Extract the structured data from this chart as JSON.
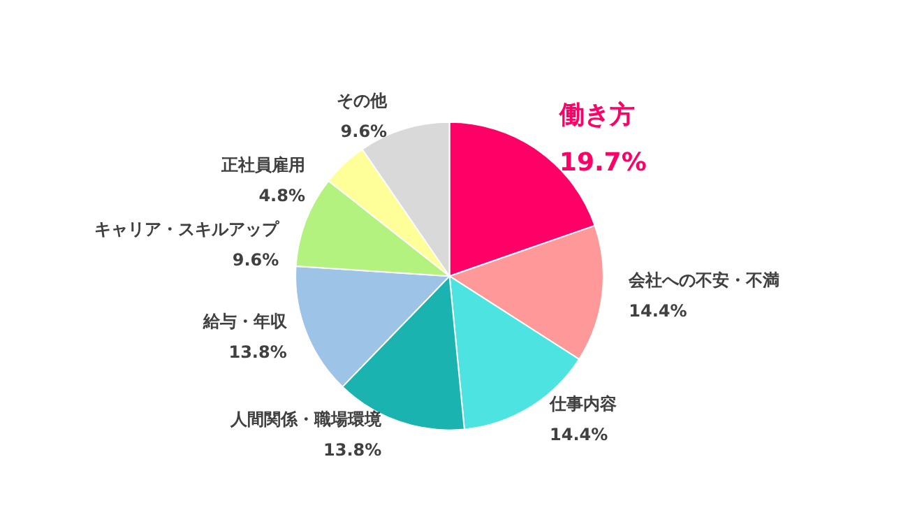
{
  "chart_data": {
    "type": "pie",
    "categories": [
      "働き方",
      "会社への不安・不満",
      "仕事内容",
      "人間関係・職場環境",
      "給与・年収",
      "キャリア・スキルアップ",
      "正社員雇用",
      "その他"
    ],
    "values": [
      19.7,
      14.4,
      14.4,
      13.8,
      13.8,
      9.6,
      4.8,
      9.6
    ],
    "value_labels": [
      "19.7%",
      "14.4%",
      "14.4%",
      "13.8%",
      "13.8%",
      "9.6%",
      "4.8%",
      "9.6%"
    ],
    "colors": [
      "#ff0066",
      "#ff9999",
      "#4de3e0",
      "#1ab3b0",
      "#9dc3e6",
      "#b3f27f",
      "#ffff99",
      "#d9d9d9"
    ],
    "legend": false
  }
}
